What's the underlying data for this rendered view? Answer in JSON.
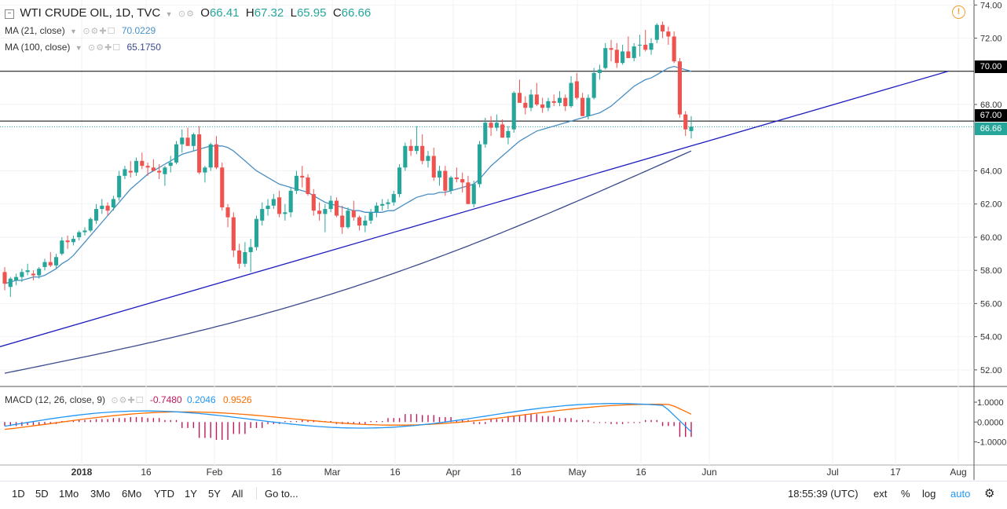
{
  "header": {
    "symbol_title": "WTI CRUDE OIL, 1D, TVC",
    "open_label": "O",
    "open": "66.41",
    "high_label": "H",
    "high": "67.32",
    "low_label": "L",
    "low": "65.95",
    "close_label": "C",
    "close": "66.66"
  },
  "indicators": {
    "ma21_label": "MA (21, close)",
    "ma21_value": "70.0229",
    "ma100_label": "MA (100, close)",
    "ma100_value": "65.1750",
    "macd_label": "MACD (12, 26, close, 9)",
    "macd_hist": "-0.7480",
    "macd_line": "0.2046",
    "macd_signal": "0.9526"
  },
  "price_axis": [
    "74.00",
    "72.00",
    "70.00",
    "68.00",
    "67.00",
    "66.66",
    "64.00",
    "62.00",
    "60.00",
    "58.00",
    "56.00",
    "54.00",
    "52.00"
  ],
  "macd_axis": [
    "1.0000",
    "0.0000",
    "-1.0000"
  ],
  "time_axis": [
    "2018",
    "16",
    "Feb",
    "16",
    "Mar",
    "16",
    "Apr",
    "16",
    "May",
    "16",
    "Jun",
    "Jul",
    "17",
    "Aug"
  ],
  "horizontal_lines": [
    {
      "label": "70.00",
      "value": 70.0,
      "color": "#000000"
    },
    {
      "label": "67.00",
      "value": 67.0,
      "color": "#000000"
    }
  ],
  "last_price_tag": {
    "label": "66.66",
    "value": 66.66,
    "color": "#26a69a"
  },
  "toolbar": {
    "ranges": [
      "1D",
      "5D",
      "1Mo",
      "3Mo",
      "6Mo",
      "YTD",
      "1Y",
      "5Y",
      "All"
    ],
    "goto": "Go to...",
    "time": "18:55:39 (UTC)",
    "ext": "ext",
    "pct": "%",
    "log": "log",
    "auto": "auto"
  },
  "colors": {
    "up": "#26a69a",
    "down": "#ef5350",
    "ma21": "#4a8fc4",
    "ma100": "#3a4a8c",
    "trendline": "#1c1cbf",
    "macd_line": "#2196f3",
    "signal_line": "#ff6d00",
    "hist": "#c2185b"
  },
  "chart_data": {
    "type": "candlestick",
    "title": "WTI CRUDE OIL, 1D, TVC",
    "y_range": [
      51,
      74.3
    ],
    "candles": [
      [
        57.9,
        58.2,
        56.8,
        57.2
      ],
      [
        57.0,
        57.6,
        56.4,
        57.5
      ],
      [
        57.4,
        57.8,
        57.1,
        57.6
      ],
      [
        57.6,
        58.1,
        57.3,
        57.9
      ],
      [
        57.9,
        58.4,
        57.7,
        58.0
      ],
      [
        57.8,
        58.0,
        57.4,
        57.7
      ],
      [
        57.7,
        58.2,
        57.5,
        58.1
      ],
      [
        58.2,
        58.7,
        58.0,
        58.5
      ],
      [
        58.5,
        59.1,
        58.2,
        58.3
      ],
      [
        58.3,
        59.0,
        58.1,
        58.8
      ],
      [
        59.0,
        60.0,
        58.9,
        59.8
      ],
      [
        59.8,
        60.1,
        59.3,
        59.7
      ],
      [
        59.7,
        60.1,
        59.5,
        59.9
      ],
      [
        60.0,
        60.4,
        59.8,
        60.3
      ],
      [
        60.3,
        60.6,
        60.1,
        60.4
      ],
      [
        60.4,
        61.2,
        60.3,
        61.1
      ],
      [
        61.0,
        62.0,
        60.8,
        61.7
      ],
      [
        61.7,
        62.3,
        61.4,
        61.9
      ],
      [
        61.9,
        62.1,
        61.3,
        61.6
      ],
      [
        61.8,
        62.5,
        61.6,
        62.3
      ],
      [
        62.4,
        64.0,
        62.2,
        63.7
      ],
      [
        63.7,
        64.3,
        63.5,
        64.1
      ],
      [
        64.0,
        64.6,
        63.6,
        63.9
      ],
      [
        63.9,
        64.8,
        63.7,
        64.6
      ],
      [
        64.6,
        65.1,
        64.1,
        64.3
      ],
      [
        64.3,
        64.5,
        63.7,
        64.2
      ],
      [
        64.2,
        64.7,
        64.0,
        64.0
      ],
      [
        64.0,
        64.4,
        63.5,
        63.9
      ],
      [
        63.8,
        64.3,
        63.1,
        64.2
      ],
      [
        64.3,
        64.9,
        63.9,
        64.5
      ],
      [
        64.5,
        65.8,
        64.4,
        65.6
      ],
      [
        65.6,
        66.5,
        65.1,
        66.0
      ],
      [
        66.0,
        66.6,
        65.6,
        65.5
      ],
      [
        65.5,
        66.3,
        65.2,
        66.2
      ],
      [
        66.2,
        66.7,
        63.8,
        63.9
      ],
      [
        63.9,
        64.3,
        63.3,
        64.2
      ],
      [
        64.2,
        65.7,
        64.0,
        65.6
      ],
      [
        65.6,
        66.1,
        64.1,
        64.2
      ],
      [
        64.2,
        64.5,
        61.6,
        61.8
      ],
      [
        61.8,
        62.0,
        60.6,
        61.2
      ],
      [
        61.2,
        61.5,
        58.8,
        59.2
      ],
      [
        59.2,
        59.6,
        58.1,
        58.4
      ],
      [
        58.4,
        59.7,
        58.2,
        59.1
      ],
      [
        59.1,
        59.9,
        57.9,
        59.4
      ],
      [
        59.4,
        61.3,
        59.2,
        61.1
      ],
      [
        61.0,
        62.1,
        60.7,
        61.7
      ],
      [
        61.7,
        62.3,
        61.3,
        61.9
      ],
      [
        61.9,
        62.6,
        61.7,
        62.3
      ],
      [
        62.4,
        62.8,
        61.2,
        61.4
      ],
      [
        61.4,
        62.0,
        61.0,
        61.5
      ],
      [
        61.5,
        63.0,
        61.2,
        62.8
      ],
      [
        62.8,
        64.0,
        62.6,
        63.7
      ],
      [
        63.7,
        64.3,
        63.0,
        63.6
      ],
      [
        63.6,
        63.8,
        62.5,
        62.6
      ],
      [
        62.6,
        62.9,
        61.3,
        61.6
      ],
      [
        61.6,
        62.1,
        61.0,
        61.4
      ],
      [
        61.4,
        62.0,
        60.3,
        61.7
      ],
      [
        61.7,
        62.5,
        61.5,
        62.2
      ],
      [
        62.2,
        62.4,
        61.2,
        61.3
      ],
      [
        61.3,
        61.9,
        60.2,
        60.6
      ],
      [
        60.6,
        61.8,
        60.5,
        61.6
      ],
      [
        61.6,
        62.2,
        61.0,
        61.2
      ],
      [
        61.2,
        61.3,
        60.4,
        60.7
      ],
      [
        60.7,
        61.3,
        60.3,
        61.0
      ],
      [
        61.0,
        61.7,
        60.8,
        61.5
      ],
      [
        61.5,
        62.1,
        61.2,
        61.9
      ],
      [
        61.9,
        62.3,
        61.6,
        62.0
      ],
      [
        62.0,
        62.3,
        61.7,
        62.1
      ],
      [
        62.1,
        62.8,
        61.9,
        62.6
      ],
      [
        62.6,
        64.4,
        62.4,
        64.2
      ],
      [
        64.2,
        65.7,
        64.0,
        65.5
      ],
      [
        65.5,
        65.9,
        64.9,
        65.2
      ],
      [
        65.2,
        66.7,
        65.0,
        65.5
      ],
      [
        65.5,
        66.2,
        64.4,
        64.6
      ],
      [
        64.6,
        65.2,
        64.2,
        64.9
      ],
      [
        64.9,
        65.4,
        63.4,
        63.6
      ],
      [
        63.6,
        64.3,
        63.1,
        64.0
      ],
      [
        64.0,
        64.3,
        62.5,
        62.8
      ],
      [
        62.8,
        63.7,
        62.6,
        63.6
      ],
      [
        63.6,
        64.2,
        63.3,
        63.5
      ],
      [
        63.5,
        63.9,
        62.7,
        63.3
      ],
      [
        63.3,
        63.7,
        62.0,
        62.0
      ],
      [
        62.0,
        63.4,
        61.8,
        63.2
      ],
      [
        63.2,
        65.8,
        63.0,
        65.6
      ],
      [
        65.6,
        67.2,
        65.4,
        66.9
      ],
      [
        66.9,
        67.3,
        66.1,
        66.6
      ],
      [
        66.6,
        67.4,
        66.4,
        66.9
      ],
      [
        66.8,
        67.1,
        66.0,
        66.0
      ],
      [
        66.0,
        66.7,
        65.6,
        66.4
      ],
      [
        66.5,
        68.8,
        66.3,
        68.7
      ],
      [
        68.7,
        69.5,
        68.1,
        68.1
      ],
      [
        68.1,
        68.5,
        67.4,
        67.8
      ],
      [
        67.8,
        68.9,
        67.6,
        68.6
      ],
      [
        68.6,
        69.3,
        67.9,
        68.0
      ],
      [
        68.0,
        68.4,
        67.5,
        67.8
      ],
      [
        67.8,
        68.4,
        67.6,
        68.2
      ],
      [
        68.2,
        68.6,
        67.9,
        68.1
      ],
      [
        68.1,
        68.8,
        67.9,
        68.4
      ],
      [
        68.4,
        68.6,
        67.6,
        67.9
      ],
      [
        67.9,
        69.7,
        67.8,
        69.3
      ],
      [
        69.4,
        69.9,
        68.3,
        68.4
      ],
      [
        68.4,
        68.7,
        67.3,
        67.3
      ],
      [
        67.3,
        68.6,
        67.1,
        68.4
      ],
      [
        68.4,
        70.2,
        68.3,
        69.9
      ],
      [
        69.9,
        70.4,
        69.5,
        70.1
      ],
      [
        70.2,
        71.7,
        70.1,
        71.4
      ],
      [
        71.4,
        71.9,
        70.6,
        71.3
      ],
      [
        71.3,
        71.7,
        70.2,
        70.5
      ],
      [
        70.5,
        71.6,
        70.4,
        71.2
      ],
      [
        71.2,
        72.1,
        70.8,
        70.8
      ],
      [
        70.8,
        71.7,
        70.6,
        71.5
      ],
      [
        71.6,
        72.2,
        70.9,
        71.6
      ],
      [
        71.6,
        72.5,
        71.2,
        71.3
      ],
      [
        71.3,
        72.0,
        71.0,
        71.7
      ],
      [
        71.9,
        72.9,
        71.7,
        72.8
      ],
      [
        72.8,
        73.0,
        72.0,
        72.4
      ],
      [
        72.4,
        72.7,
        71.6,
        72.1
      ],
      [
        72.1,
        72.4,
        70.5,
        70.6
      ],
      [
        70.6,
        70.8,
        67.2,
        67.4
      ],
      [
        67.4,
        67.6,
        66.1,
        66.5
      ],
      [
        66.4,
        67.3,
        65.95,
        66.66
      ]
    ],
    "ma21": [
      57.2,
      57.3,
      57.4,
      57.4,
      57.5,
      57.6,
      57.6,
      57.7,
      57.9,
      58.1,
      58.4,
      58.6,
      58.9,
      59.3,
      59.7,
      60.1,
      60.5,
      60.9,
      61.3,
      61.7,
      62.1,
      62.5,
      62.9,
      63.2,
      63.5,
      63.8,
      64.0,
      64.2,
      64.4,
      64.6,
      64.8,
      65.0,
      65.1,
      65.2,
      65.3,
      65.4,
      65.5,
      65.5,
      65.5,
      65.4,
      65.2,
      64.9,
      64.6,
      64.3,
      64.0,
      63.8,
      63.6,
      63.4,
      63.2,
      63.1,
      63.0,
      62.9,
      62.8,
      62.7,
      62.5,
      62.3,
      62.1,
      62.0,
      61.9,
      61.8,
      61.7,
      61.6,
      61.6,
      61.5,
      61.5,
      61.5,
      61.5,
      61.6,
      61.6,
      61.8,
      62.0,
      62.2,
      62.4,
      62.5,
      62.6,
      62.6,
      62.7,
      62.7,
      62.8,
      62.9,
      63.0,
      63.1,
      63.2,
      63.5,
      63.9,
      64.3,
      64.6,
      64.9,
      65.2,
      65.5,
      65.8,
      66.0,
      66.2,
      66.4,
      66.5,
      66.6,
      66.7,
      66.8,
      66.9,
      67.0,
      67.1,
      67.2,
      67.3,
      67.4,
      67.5,
      67.7,
      67.9,
      68.2,
      68.5,
      68.8,
      69.1,
      69.3,
      69.5,
      69.6,
      69.8,
      70.0,
      70.2,
      70.3,
      70.2,
      70.1,
      70.0
    ],
    "ma100_range": [
      51.8,
      65.2
    ],
    "trendline": {
      "start_value": 53.4,
      "end_value": 70.0
    },
    "macd": {
      "y_range": [
        -1.0,
        1.0
      ],
      "hist_sample": [
        -0.2,
        -0.15,
        -0.1,
        0.05,
        0.1,
        0.15,
        0.2,
        0.25,
        0.2,
        0.1,
        -0.3,
        -0.8,
        -0.9,
        -0.6,
        -0.3,
        -0.1,
        0.05,
        0.1,
        0.05,
        -0.1,
        -0.1,
        0.05,
        0.2,
        0.4,
        0.35,
        0.25,
        0.1,
        -0.1,
        0.15,
        0.3,
        0.4,
        0.3,
        0.2,
        0.1,
        -0.05,
        -0.1,
        -0.05,
        0.1,
        -0.2,
        -0.75
      ]
    }
  }
}
